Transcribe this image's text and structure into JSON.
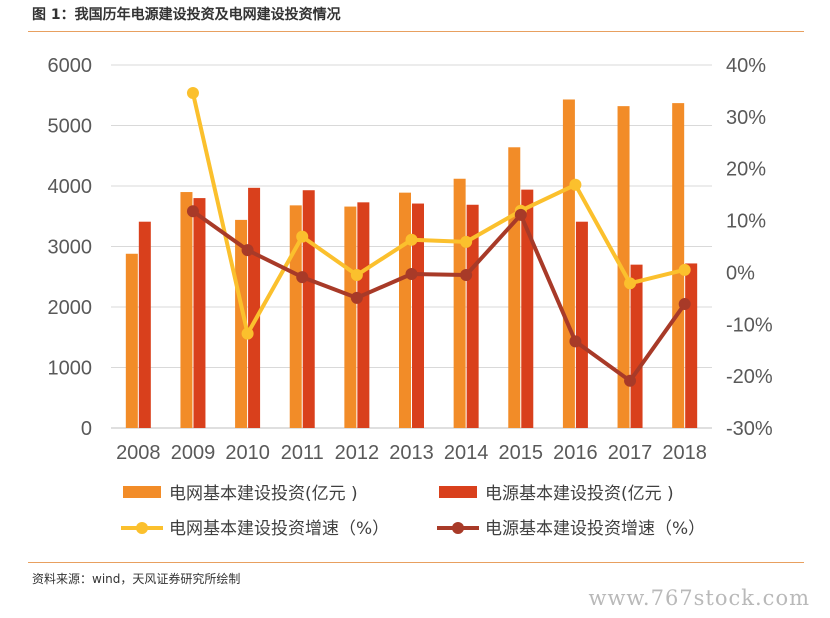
{
  "header": {
    "title": "图 1：我国历年电源建设投资及电网建设投资情况"
  },
  "footer": {
    "source": "资料来源：wind，天风证券研究所绘制",
    "watermark": "www.767stock.com"
  },
  "colors": {
    "grid_bar": "#F28C28",
    "power_bar": "#D9401C",
    "grid_line": "#FBC02D",
    "power_line": "#A83A28",
    "accent_rule": "#E8A060"
  },
  "chart_data": {
    "type": "bar",
    "categories": [
      "2008",
      "2009",
      "2010",
      "2011",
      "2012",
      "2013",
      "2014",
      "2015",
      "2016",
      "2017",
      "2018"
    ],
    "series": [
      {
        "name": "电网基本建设投资(亿元 )",
        "type": "bar",
        "axis": "left",
        "values": [
          2880,
          3900,
          3440,
          3680,
          3660,
          3890,
          4120,
          4640,
          5430,
          5320,
          5370
        ]
      },
      {
        "name": "电源基本建设投资(亿元 )",
        "type": "bar",
        "axis": "left",
        "values": [
          3410,
          3800,
          3970,
          3930,
          3730,
          3710,
          3690,
          3940,
          3410,
          2700,
          2720
        ]
      },
      {
        "name": "电网基本建设投资增速（%）",
        "type": "line",
        "axis": "right",
        "values": [
          null,
          34.6,
          -11.8,
          6.9,
          -0.5,
          6.3,
          5.9,
          11.9,
          16.9,
          -2.1,
          0.5
        ]
      },
      {
        "name": "电源基本建设投资增速（%）",
        "type": "line",
        "axis": "right",
        "values": [
          null,
          11.8,
          4.3,
          -0.9,
          -4.9,
          -0.3,
          -0.5,
          11.1,
          -13.3,
          -20.9,
          -6.1
        ]
      }
    ],
    "left_axis": {
      "ylim": [
        0,
        6000
      ],
      "ticks": [
        "0",
        "1000",
        "2000",
        "3000",
        "4000",
        "5000",
        "6000"
      ]
    },
    "right_axis": {
      "ylim": [
        -30,
        40
      ],
      "ticks": [
        "-30%",
        "-20%",
        "-10%",
        "0%",
        "10%",
        "20%",
        "30%",
        "40%"
      ]
    },
    "grid": true,
    "legend_position": "bottom"
  }
}
